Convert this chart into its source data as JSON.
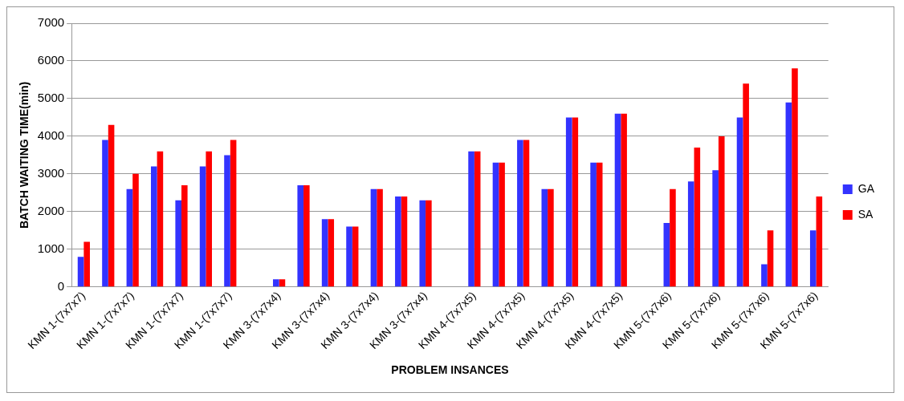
{
  "chart_data": {
    "type": "bar",
    "xlabel": "PROBLEM INSANCES",
    "ylabel": "BATCH WAITING TIME(min)",
    "categories": [
      "KMN 1-(7x7x7)",
      null,
      "KMN 1-(7x7x7)",
      null,
      "KMN 1-(7x7x7)",
      null,
      "KMN 1-(7x7x7)",
      null,
      "KMN 3-(7x7x4)",
      null,
      "KMN 3-(7x7x4)",
      null,
      "KMN 3-(7x7x4)",
      null,
      "KMN 3-(7x7x4)",
      null,
      "KMN 4-(7x7x5)",
      null,
      "KMN 4-(7x7x5)",
      null,
      "KMN 4-(7x7x5)",
      null,
      "KMN 4-(7x7x5)",
      null,
      "KMN 5-(7x7x6)",
      null,
      "KMN 5-(7x7x6)",
      null,
      "KMN 5-(7x7x6)",
      null,
      "KMN 5-(7x7x6)"
    ],
    "series": [
      {
        "name": "GA",
        "color": "#3333ff",
        "values": [
          800,
          3900,
          2600,
          3200,
          2300,
          3200,
          3500,
          null,
          200,
          2700,
          1800,
          1600,
          2600,
          2400,
          2300,
          null,
          3600,
          3300,
          3900,
          2600,
          4500,
          3300,
          4600,
          null,
          1700,
          2800,
          3100,
          4500,
          600,
          4900,
          1500
        ]
      },
      {
        "name": "SA",
        "color": "#ff0000",
        "values": [
          1200,
          4300,
          3000,
          3600,
          2700,
          3600,
          3900,
          null,
          200,
          2700,
          1800,
          1600,
          2600,
          2400,
          2300,
          null,
          3600,
          3300,
          3900,
          2600,
          4500,
          3300,
          4600,
          null,
          2600,
          3700,
          4000,
          5400,
          1500,
          5800,
          2400
        ]
      }
    ],
    "ylim": [
      0,
      7000
    ],
    "yticks": [
      0,
      1000,
      2000,
      3000,
      4000,
      5000,
      6000,
      7000
    ],
    "grid": "y",
    "legend": "right"
  }
}
